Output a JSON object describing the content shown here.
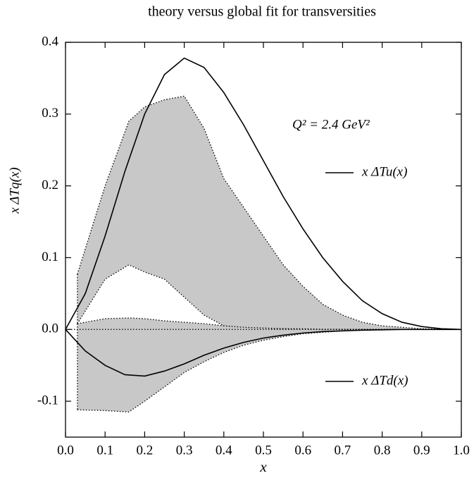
{
  "chart_data": {
    "type": "line",
    "title": "theory versus global fit for transversities",
    "xlabel": "x",
    "ylabel": "x ΔTq(x)",
    "annotation": "Q² = 2.4 GeV²",
    "x": [
      0,
      0.05,
      0.1,
      0.15,
      0.2,
      0.25,
      0.3,
      0.35,
      0.4,
      0.45,
      0.5,
      0.55,
      0.6,
      0.65,
      0.7,
      0.75,
      0.8,
      0.85,
      0.9,
      0.95,
      1.0
    ],
    "series": [
      {
        "name": "x ΔTu(x)",
        "color": "#000000",
        "values": [
          0,
          0.05,
          0.13,
          0.22,
          0.3,
          0.355,
          0.378,
          0.365,
          0.33,
          0.285,
          0.235,
          0.185,
          0.14,
          0.1,
          0.067,
          0.04,
          0.022,
          0.01,
          0.004,
          0.001,
          0
        ]
      },
      {
        "name": "x ΔTd(x)",
        "color": "#000000",
        "values": [
          0,
          -0.03,
          -0.05,
          -0.063,
          -0.065,
          -0.058,
          -0.048,
          -0.036,
          -0.026,
          -0.018,
          -0.012,
          -0.008,
          -0.005,
          -0.003,
          -0.002,
          -0.001,
          -0.0005,
          0,
          0,
          0,
          0
        ]
      }
    ],
    "bands": [
      {
        "color": "#c8c8c8",
        "x": [
          0.03,
          0.1,
          0.16,
          0.2,
          0.25,
          0.3,
          0.35,
          0.4,
          0.45,
          0.5,
          0.55,
          0.6,
          0.65,
          0.7,
          0.75,
          0.8,
          0.9,
          1.0
        ],
        "upper": [
          0.077,
          0.2,
          0.29,
          0.31,
          0.32,
          0.325,
          0.28,
          0.21,
          0.17,
          0.13,
          0.09,
          0.06,
          0.035,
          0.02,
          0.01,
          0.005,
          0.001,
          0
        ],
        "lower": [
          0.008,
          0.07,
          0.09,
          0.08,
          0.07,
          0.045,
          0.02,
          0.005,
          0.002,
          0.001,
          0.001,
          0,
          0,
          0,
          0,
          0,
          0,
          0
        ]
      },
      {
        "color": "#c8c8c8",
        "x": [
          0.03,
          0.1,
          0.16,
          0.2,
          0.25,
          0.3,
          0.35,
          0.4,
          0.45,
          0.5,
          0.55,
          0.6,
          0.65,
          0.7,
          0.75,
          0.8,
          0.9,
          1.0
        ],
        "upper": [
          0.008,
          0.015,
          0.016,
          0.015,
          0.012,
          0.01,
          0.008,
          0.005,
          0.003,
          0.002,
          0.001,
          0.001,
          0,
          0,
          0,
          0,
          0,
          0
        ],
        "lower": [
          -0.112,
          -0.113,
          -0.115,
          -0.1,
          -0.08,
          -0.06,
          -0.045,
          -0.032,
          -0.022,
          -0.015,
          -0.01,
          -0.006,
          -0.004,
          -0.002,
          -0.001,
          0,
          0,
          0
        ]
      }
    ],
    "xlim": [
      0,
      1.0
    ],
    "xticks": [
      {
        "value": 0,
        "label": "0.0"
      },
      0.1,
      0.2,
      0.3,
      0.4,
      0.5,
      0.6,
      0.7,
      0.8,
      0.9,
      {
        "value": 1.0,
        "label": "1.0"
      }
    ],
    "ylim": [
      -0.15,
      0.4
    ],
    "yticks": [
      -0.1,
      {
        "value": 0,
        "label": "0.0"
      },
      0.1,
      0.2,
      0.3,
      0.4
    ],
    "zero_line": true
  }
}
